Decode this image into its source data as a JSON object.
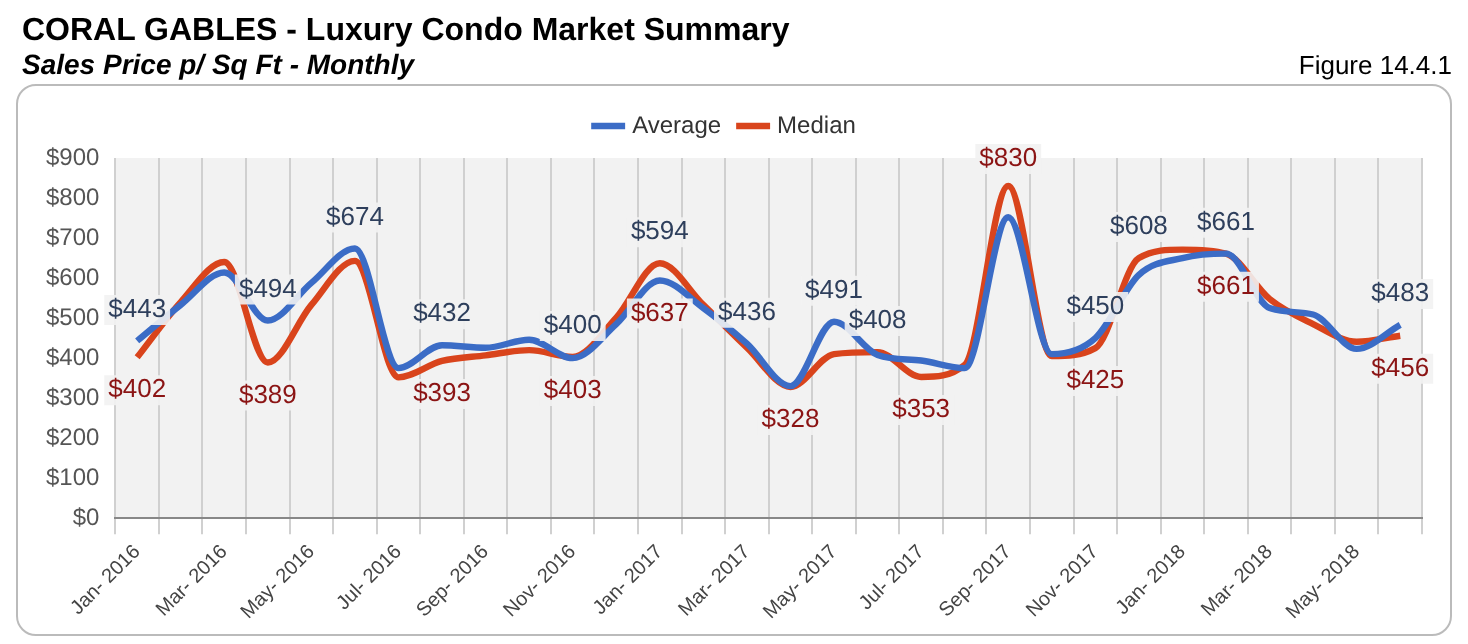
{
  "chart_data": {
    "type": "line",
    "title": "CORAL GABLES - Luxury Condo Market Summary",
    "subtitle": "Sales Price  p/ Sq Ft - Monthly",
    "annotations": [
      "Figure 14.4.1"
    ],
    "categories": [
      "Jan- 2016",
      null,
      "Mar- 2016",
      null,
      "May- 2016",
      null,
      "Jul- 2016",
      null,
      "Sep- 2016",
      null,
      "Nov- 2016",
      null,
      "Jan- 2017",
      null,
      "Mar- 2017",
      null,
      "May- 2017",
      null,
      "Jul- 2017",
      null,
      "Sep- 2017",
      null,
      "Nov- 2017",
      null,
      "Jan- 2018",
      null,
      "Mar- 2018",
      null,
      "May- 2018",
      null
    ],
    "series": [
      {
        "name": "Average",
        "color": "#3b6cc6",
        "values": [
          443,
          533,
          614,
          494,
          588,
          674,
          375,
          432,
          426,
          446,
          400,
          485,
          594,
          525,
          436,
          330,
          491,
          408,
          394,
          375,
          752,
          410,
          450,
          608,
          650,
          661,
          525,
          509,
          423,
          483
        ],
        "value_labels": [
          "$443",
          null,
          null,
          "$494",
          null,
          "$674",
          null,
          "$432",
          null,
          null,
          "$400",
          null,
          "$594",
          null,
          "$436",
          null,
          "$491",
          "$408",
          null,
          null,
          null,
          null,
          "$450",
          "$608",
          null,
          "$661",
          null,
          null,
          null,
          "$483"
        ]
      },
      {
        "name": "Median",
        "color": "#d9441c",
        "values": [
          402,
          540,
          640,
          389,
          533,
          643,
          352,
          393,
          407,
          420,
          403,
          501,
          637,
          533,
          426,
          328,
          410,
          415,
          353,
          383,
          830,
          405,
          425,
          650,
          671,
          661,
          548,
          485,
          441,
          456
        ],
        "value_labels": [
          "$402",
          null,
          null,
          "$389",
          null,
          null,
          null,
          "$393",
          null,
          null,
          "$403",
          null,
          "$637",
          null,
          null,
          "$328",
          null,
          null,
          "$353",
          null,
          "$830",
          null,
          "$425",
          null,
          null,
          "$661",
          null,
          null,
          null,
          "$456"
        ]
      }
    ],
    "ylim": [
      0,
      900
    ],
    "yticks": [
      {
        "value": 0,
        "label": "$0"
      },
      {
        "value": 100,
        "label": "$100"
      },
      {
        "value": 200,
        "label": "$200"
      },
      {
        "value": 300,
        "label": "$300"
      },
      {
        "value": 400,
        "label": "$400"
      },
      {
        "value": 500,
        "label": "$500"
      },
      {
        "value": 600,
        "label": "$600"
      },
      {
        "value": 700,
        "label": "$700"
      },
      {
        "value": 800,
        "label": "$800"
      },
      {
        "value": 900,
        "label": "$900"
      }
    ],
    "grid": "x",
    "legend": "top",
    "marker": "none",
    "line_style": "solid"
  }
}
